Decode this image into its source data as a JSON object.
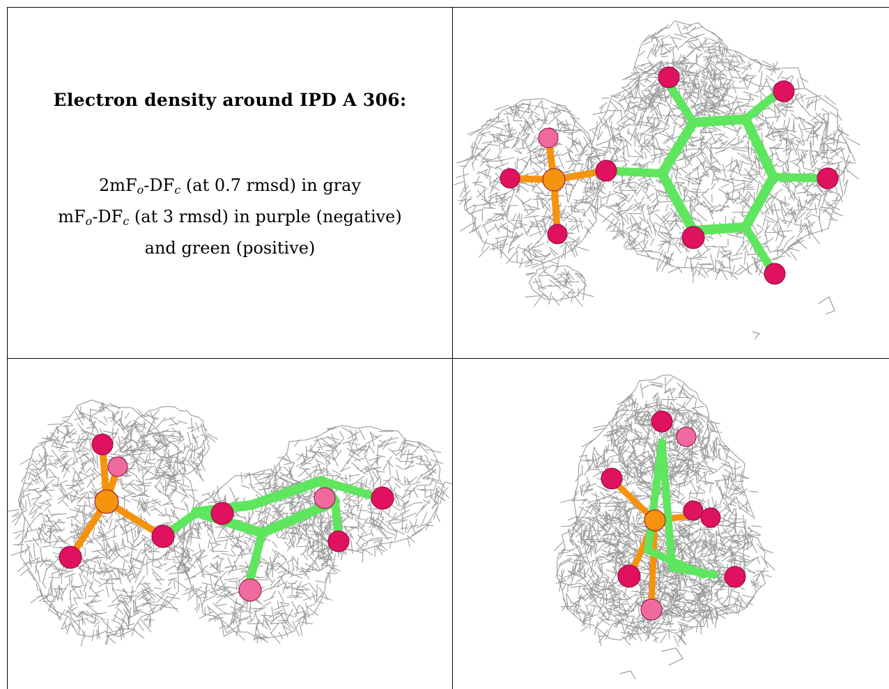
{
  "figure": {
    "title": "Electron density around IPD A 306:",
    "legend": {
      "line1": {
        "pre": "2mF",
        "sub1": "o",
        "mid": "-DF",
        "sub2": "c",
        "post": " (at 0.7 rmsd) in gray"
      },
      "line2": {
        "pre": "mF",
        "sub1": "o",
        "mid": "-DF",
        "sub2": "c",
        "post": " (at 3 rmsd) in purple (negative)"
      },
      "line3": "and green (positive)"
    },
    "colors": {
      "mesh": "#9a9a9a",
      "carbon_bonds": "#5ee65e",
      "oxygen": "#e0115f",
      "oxygen_light": "#f06aa0",
      "phosphorus": "#f5930f",
      "border": "#000000"
    },
    "panels": [
      "view-top-right",
      "view-bottom-left",
      "view-bottom-right"
    ]
  }
}
